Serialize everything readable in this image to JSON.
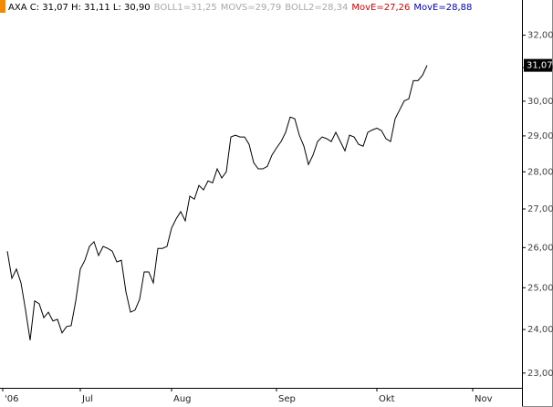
{
  "chart_data": {
    "type": "line",
    "title": "AXA C: 31,07 H: 31,11 L: 30,90",
    "indicators": [
      {
        "label": "BOLL1=31,25",
        "color": "#a8a8a8"
      },
      {
        "label": "MOVS=29,79",
        "color": "#a8a8a8"
      },
      {
        "label": "BOLL2=28,34",
        "color": "#a8a8a8"
      },
      {
        "label": "MovE=27,26",
        "color": "#d00000"
      },
      {
        "label": "MovE=28,88",
        "color": "#0000b0"
      }
    ],
    "log_scale": true,
    "color": "#000000",
    "x": [
      2,
      3,
      4,
      5,
      6,
      7,
      8,
      9,
      10,
      11,
      12,
      13,
      14,
      15,
      16,
      17,
      18,
      19,
      20,
      21,
      22,
      23,
      24,
      25,
      26,
      27,
      28,
      29,
      30,
      31,
      32,
      33,
      34,
      35,
      36,
      37,
      38,
      39,
      40,
      41,
      42,
      43,
      44,
      45,
      46,
      47,
      48,
      49,
      50,
      51,
      52,
      53,
      54,
      55,
      56,
      57,
      58,
      59,
      60,
      61,
      62,
      63,
      64,
      65,
      66,
      67,
      68,
      69,
      70,
      71,
      72,
      73,
      74,
      75,
      76,
      77,
      78,
      79,
      80,
      81,
      82,
      83,
      84,
      85,
      86,
      87,
      88,
      89,
      90,
      91,
      92,
      93,
      94
    ],
    "values": [
      25.91,
      25.23,
      25.46,
      25.12,
      24.46,
      23.75,
      24.68,
      24.61,
      24.28,
      24.41,
      24.2,
      24.24,
      23.92,
      24.07,
      24.09,
      24.68,
      25.46,
      25.68,
      26.03,
      26.15,
      25.8,
      26.03,
      25.98,
      25.91,
      25.64,
      25.68,
      24.9,
      24.41,
      24.46,
      24.72,
      25.39,
      25.39,
      25.12,
      25.98,
      25.98,
      26.03,
      26.5,
      26.74,
      26.93,
      26.69,
      27.34,
      27.26,
      27.63,
      27.51,
      27.75,
      27.7,
      28.08,
      27.83,
      28.0,
      28.97,
      29.02,
      28.97,
      28.97,
      28.76,
      28.25,
      28.08,
      28.08,
      28.15,
      28.46,
      28.66,
      28.84,
      29.1,
      29.54,
      29.49,
      29.02,
      28.71,
      28.2,
      28.46,
      28.84,
      28.97,
      28.92,
      28.84,
      29.1,
      28.84,
      28.58,
      29.02,
      28.97,
      28.76,
      28.71,
      29.1,
      29.17,
      29.22,
      29.15,
      28.92,
      28.84,
      29.49,
      29.75,
      30.01,
      30.07,
      30.61,
      30.61,
      30.77,
      31.07
    ],
    "last_price": {
      "value": 31.07,
      "label": "31,07"
    },
    "xlim": [
      0.4,
      114.8
    ],
    "xticks": [
      {
        "value": 1,
        "label": "'06"
      },
      {
        "value": 18,
        "label": "Jul"
      },
      {
        "value": 38,
        "label": "Aug"
      },
      {
        "value": 61,
        "label": "Sep"
      },
      {
        "value": 83,
        "label": "Okt"
      },
      {
        "value": 104,
        "label": "Nov"
      }
    ],
    "ylim": [
      22.67,
      32.65
    ],
    "yticks": [
      {
        "value": 23,
        "label": "23,00"
      },
      {
        "value": 24,
        "label": "24,00"
      },
      {
        "value": 25,
        "label": "25,00"
      },
      {
        "value": 26,
        "label": "26,00"
      },
      {
        "value": 27,
        "label": "27,00"
      },
      {
        "value": 28,
        "label": "28,00"
      },
      {
        "value": 29,
        "label": "29,00"
      },
      {
        "value": 30,
        "label": "30,00"
      },
      {
        "value": 31,
        "label": "31,00"
      },
      {
        "value": 32,
        "label": "32,00"
      }
    ]
  }
}
